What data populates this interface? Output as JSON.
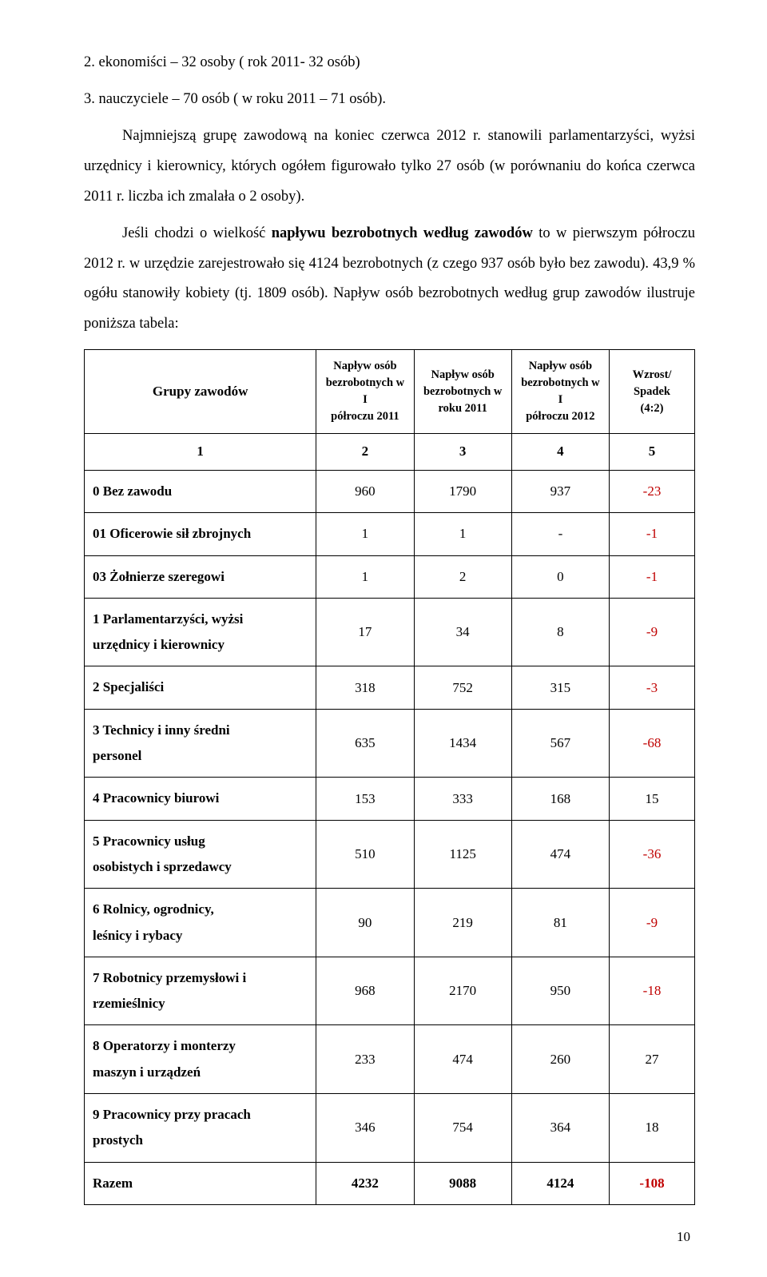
{
  "colors": {
    "text": "#000000",
    "background": "#ffffff",
    "negative": "#c00000",
    "border": "#000000"
  },
  "typography": {
    "body_family": "Times New Roman",
    "body_size_pt": 14,
    "line_height": 2.05,
    "table_header_small_pt": 11,
    "table_cell_pt": 13
  },
  "paragraphs": {
    "p1": "2.   ekonomiści – 32 osoby ( rok 2011- 32 osób)",
    "p2": "3.   nauczyciele – 70 osób ( w roku 2011 – 71 osób).",
    "p3_a": "Najmniejszą grupę zawodową na koniec czerwca 2012 r. stanowili parlamentarzyści, wyżsi urzędnicy i kierownicy, których ogółem figurowało tylko 27 osób (w porównaniu do końca czerwca 2011 r. liczba ich zmalała o 2 osoby).",
    "p4_a": "Jeśli chodzi o wielkość ",
    "p4_b": "napływu bezrobotnych według zawodów",
    "p4_c": " to w pierwszym półroczu 2012 r. w urzędzie zarejestrowało się 4124 bezrobotnych (z czego 937 osób było bez zawodu). 43,9 % ogółu stanowiły kobiety (tj. 1809 osób). Napływ osób bezrobotnych według grup zawodów ilustruje poniższa tabela:"
  },
  "table": {
    "headers": {
      "col1": "Grupy  zawodów",
      "col2_l1": "Napływ osób",
      "col2_l2": "bezrobotnych w I",
      "col2_l3": "półroczu 2011",
      "col3_l1": "Napływ osób",
      "col3_l2": "bezrobotnych w",
      "col3_l3": "roku 2011",
      "col4_l1": "Napływ osób",
      "col4_l2": "bezrobotnych w I",
      "col4_l3": "półroczu 2012",
      "col5_l1": "Wzrost/",
      "col5_l2": "Spadek",
      "col5_l3": "(4:2)"
    },
    "num_row": {
      "c1": "1",
      "c2": "2",
      "c3": "3",
      "c4": "4",
      "c5": "5"
    },
    "rows": [
      {
        "label": "0    Bez zawodu",
        "c2": "960",
        "c3": "1790",
        "c4": "937",
        "c5": "-23",
        "neg": true
      },
      {
        "label": "01  Oficerowie sił zbrojnych",
        "c2": "1",
        "c3": "1",
        "c4": "-",
        "c5": "-1",
        "neg": true
      },
      {
        "label": "03  Żołnierze szeregowi",
        "c2": "1",
        "c3": "2",
        "c4": "0",
        "c5": "-1",
        "neg": true
      },
      {
        "label": "1     Parlamentarzyści, wyżsi\n       urzędnicy i kierownicy",
        "c2": "17",
        "c3": "34",
        "c4": "8",
        "c5": "-9",
        "neg": true
      },
      {
        "label": "2     Specjaliści",
        "c2": "318",
        "c3": "752",
        "c4": "315",
        "c5": "-3",
        "neg": true
      },
      {
        "label": "3     Technicy i inny średni\n       personel",
        "c2": "635",
        "c3": "1434",
        "c4": "567",
        "c5": "-68",
        "neg": true
      },
      {
        "label": "4     Pracownicy biurowi",
        "c2": "153",
        "c3": "333",
        "c4": "168",
        "c5": "15",
        "neg": false
      },
      {
        "label": "5    Pracownicy usług\n      osobistych i sprzedawcy",
        "c2": "510",
        "c3": "1125",
        "c4": "474",
        "c5": "-36",
        "neg": true
      },
      {
        "label": "6    Rolnicy, ogrodnicy,\n      leśnicy  i  rybacy",
        "c2": "90",
        "c3": "219",
        "c4": "81",
        "c5": "-9",
        "neg": true
      },
      {
        "label": "7    Robotnicy przemysłowi i\n      rzemieślnicy",
        "c2": "968",
        "c3": "2170",
        "c4": "950",
        "c5": "-18",
        "neg": true
      },
      {
        "label": "8    Operatorzy i monterzy\n      maszyn i urządzeń",
        "c2": "233",
        "c3": "474",
        "c4": "260",
        "c5": "27",
        "neg": false
      },
      {
        "label": "9     Pracownicy przy pracach\n       prostych",
        "c2": "346",
        "c3": "754",
        "c4": "364",
        "c5": "18",
        "neg": false
      }
    ],
    "total": {
      "label": "      Razem",
      "c2": "4232",
      "c3": "9088",
      "c4": "4124",
      "c5": "-108",
      "neg": true
    },
    "col_widths_pct": [
      38,
      16,
      16,
      16,
      14
    ]
  },
  "page_number": "10"
}
